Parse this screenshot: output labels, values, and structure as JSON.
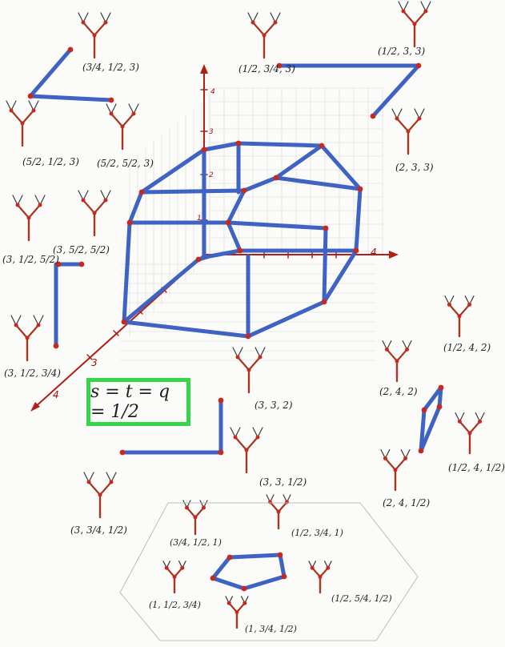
{
  "colors": {
    "edge": "#3f63c4",
    "tree": "#a6361f",
    "leaf": "#3a3a3a",
    "vertex": "#c8281e",
    "axis": "#b02016",
    "box": "#35d64a",
    "grid": "#c9c9c9"
  },
  "equation": "s = t = q = 1/2",
  "axis_ticks": {
    "z": [
      "1",
      "2",
      "3",
      "4"
    ],
    "y_end": "4",
    "x_mid": "3",
    "x_end": "4"
  },
  "labels": {
    "l1": "(3/4, 1/2, 3)",
    "l2": "(5/2, 1/2, 3)",
    "l3": "(5/2, 5/2, 3)",
    "l4": "(1/2, 3/4, 3)",
    "l5": "(1/2, 3, 3)",
    "l6": "(2, 3, 3)",
    "l7": "(3, 1/2, 5/2)",
    "l8": "(3, 5/2, 5/2)",
    "l9": "(3, 1/2, 3/4)",
    "l10": "(3, 3, 2)",
    "l11": "(3, 3, 1/2)",
    "l12": "(3, 3/4, 1/2)",
    "l13": "(1/2, 4, 2)",
    "l14": "(2, 4, 2)",
    "l15": "(1/2, 4, 1/2)",
    "l16": "(2, 4, 1/2)",
    "l17": "(3/4, 1/2, 1)",
    "l18": "(1/2, 3/4, 1)",
    "l19": "(1, 1/2, 3/4)",
    "l20": "(1/2, 5/4, 1/2)",
    "l21": "(1, 3/4, 1/2)"
  }
}
